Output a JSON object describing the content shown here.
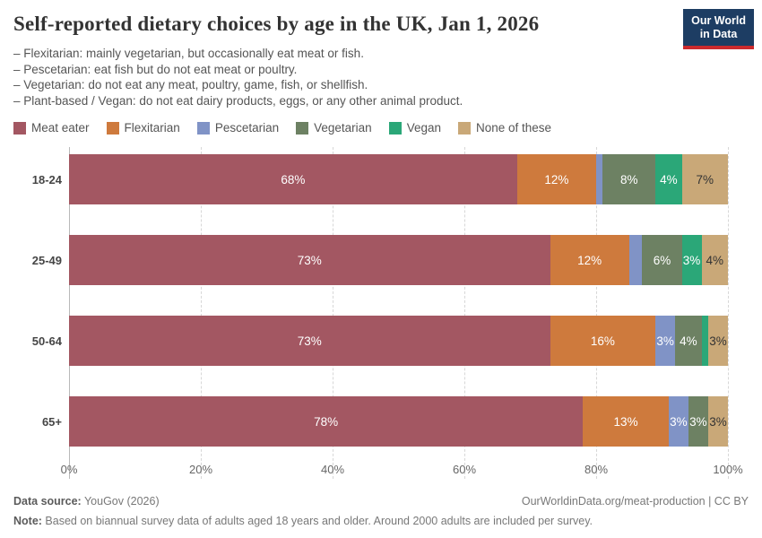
{
  "header": {
    "title": "Self-reported dietary choices by age in the UK, Jan 1, 2026",
    "logo": {
      "line1": "Our World",
      "line2": "in Data"
    }
  },
  "subtitle_lines": [
    "– Flexitarian: mainly vegetarian, but occasionally eat meat or fish.",
    "– Pescetarian: eat fish but do not eat meat or poultry.",
    "– Vegetarian: do not eat any meat, poultry, game, fish, or shellfish.",
    "– Plant-based / Vegan: do not eat dairy products, eggs, or any other animal product."
  ],
  "chart_data": {
    "type": "bar",
    "orientation": "horizontal",
    "stacked": true,
    "unit": "%",
    "title": "Self-reported dietary choices by age in the UK, Jan 1, 2026",
    "categories": [
      "18-24",
      "25-49",
      "50-64",
      "65+"
    ],
    "series": [
      {
        "name": "Meat eater",
        "color": "#a35762",
        "text_color": "#ffffff",
        "values": [
          68,
          73,
          73,
          78
        ]
      },
      {
        "name": "Flexitarian",
        "color": "#ce7a3d",
        "text_color": "#ffffff",
        "values": [
          12,
          12,
          16,
          13
        ]
      },
      {
        "name": "Pescetarian",
        "color": "#8093c6",
        "text_color": "#ffffff",
        "values": [
          1,
          2,
          3,
          3
        ]
      },
      {
        "name": "Vegetarian",
        "color": "#6d8163",
        "text_color": "#ffffff",
        "values": [
          8,
          6,
          4,
          3
        ]
      },
      {
        "name": "Vegan",
        "color": "#2ba778",
        "text_color": "#ffffff",
        "values": [
          4,
          3,
          1,
          0
        ]
      },
      {
        "name": "None of these",
        "color": "#c9a878",
        "text_color": "#333333",
        "values": [
          7,
          4,
          3,
          3
        ]
      }
    ],
    "label_threshold": 3,
    "x_ticks": [
      "0%",
      "20%",
      "40%",
      "60%",
      "80%",
      "100%"
    ],
    "xlim": [
      0,
      100
    ],
    "grid": "dashed-vertical",
    "legend_position": "top"
  },
  "footer": {
    "source_label": "Data source:",
    "source_value": " YouGov (2026)",
    "credit": "OurWorldinData.org/meat-production | CC BY",
    "note_label": "Note:",
    "note_value": " Based on biannual survey data of adults aged 18 years and older. Around 2000 adults are included per survey."
  },
  "colors": {
    "logo_bg": "#1d3d63",
    "logo_accent": "#cb2a2d",
    "gridline": "#d7d7d7",
    "axis_line": "#b9b9b9"
  }
}
